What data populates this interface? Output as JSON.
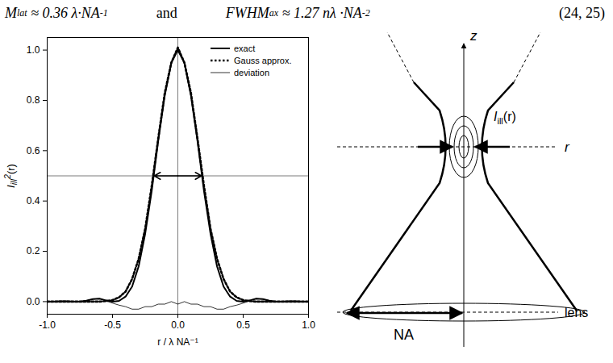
{
  "equation": {
    "parts": [
      {
        "segments": [
          {
            "text": "M"
          },
          {
            "text": "lat",
            "sub": true
          },
          {
            "text": " ≈ 0.36 λ·NA"
          },
          {
            "text": "-1",
            "sup": true
          }
        ]
      },
      {
        "segments": [
          {
            "text": "and",
            "plain": true
          }
        ]
      },
      {
        "segments": [
          {
            "text": "FWHM"
          },
          {
            "text": "ax",
            "sub": true
          },
          {
            "text": " ≈ 1.27 nλ ·NA"
          },
          {
            "text": "-2",
            "sup": true
          }
        ]
      }
    ],
    "number": "(24, 25)"
  },
  "chart_data": {
    "type": "line",
    "xlabel": "r / λ NA⁻¹",
    "ylabel": {
      "base": "I",
      "sub": "ill",
      "sup": "2",
      "suffix": "(r)"
    },
    "x": [
      -1.0,
      -0.95,
      -0.9,
      -0.85,
      -0.8,
      -0.75,
      -0.7,
      -0.65,
      -0.6,
      -0.55,
      -0.5,
      -0.45,
      -0.4,
      -0.35,
      -0.3,
      -0.25,
      -0.2,
      -0.15,
      -0.1,
      -0.05,
      0.0,
      0.05,
      0.1,
      0.15,
      0.2,
      0.25,
      0.3,
      0.35,
      0.4,
      0.45,
      0.5,
      0.55,
      0.6,
      0.65,
      0.7,
      0.75,
      0.8,
      0.85,
      0.9,
      0.95,
      1.0
    ],
    "series": [
      {
        "name": "exact",
        "color": "#000000",
        "line_style": "solid",
        "values": [
          0.0,
          0.0,
          0.001,
          0.001,
          0.0,
          0.0,
          0.004,
          0.01,
          0.012,
          0.005,
          0.0,
          0.003,
          0.02,
          0.06,
          0.14,
          0.27,
          0.44,
          0.64,
          0.82,
          0.95,
          1.0,
          0.95,
          0.82,
          0.64,
          0.44,
          0.27,
          0.14,
          0.06,
          0.02,
          0.003,
          0.0,
          0.005,
          0.012,
          0.01,
          0.004,
          0.0,
          0.0,
          0.001,
          0.001,
          0.0,
          0.0
        ]
      },
      {
        "name": "Gauss approx.",
        "color": "#000000",
        "line_style": "dotted",
        "values": [
          0,
          0,
          0,
          0,
          0,
          0,
          0,
          0,
          0.0,
          0.002,
          0.006,
          0.017,
          0.04,
          0.09,
          0.17,
          0.29,
          0.46,
          0.65,
          0.83,
          0.95,
          1.01,
          0.95,
          0.83,
          0.65,
          0.46,
          0.29,
          0.17,
          0.09,
          0.04,
          0.017,
          0.006,
          0.002,
          0.0,
          0,
          0,
          0,
          0,
          0,
          0,
          0,
          0
        ]
      },
      {
        "name": "deviation",
        "color": "#000000",
        "line_style": "solid",
        "values": [
          0,
          0,
          0.001,
          0.001,
          0,
          0,
          0.004,
          0.01,
          0.012,
          0.003,
          -0.006,
          -0.014,
          -0.02,
          -0.03,
          -0.03,
          -0.02,
          -0.02,
          -0.01,
          -0.01,
          0.0,
          -0.01,
          0.0,
          -0.01,
          -0.01,
          -0.02,
          -0.02,
          -0.03,
          -0.03,
          -0.02,
          -0.014,
          -0.006,
          0.003,
          0.012,
          0.01,
          0.004,
          0,
          0,
          0.001,
          0.001,
          0,
          0
        ]
      }
    ],
    "xlim": [
      -1.0,
      1.0
    ],
    "xticks": [
      {
        "value": -1.0,
        "label": "-1.0"
      },
      {
        "value": -0.5,
        "label": "-0.5"
      },
      {
        "value": 0,
        "label": "0.0"
      },
      {
        "value": 0.5,
        "label": "0.5"
      },
      {
        "value": 1.0,
        "label": "1.0"
      }
    ],
    "ylim": [
      -0.05,
      1.05
    ],
    "yticks": [
      {
        "value": 0,
        "label": "0.0"
      },
      {
        "value": 0.2,
        "label": "0.2"
      },
      {
        "value": 0.4,
        "label": "0.4"
      },
      {
        "value": 0.6,
        "label": "0.6"
      },
      {
        "value": 0.8,
        "label": "0.8"
      },
      {
        "value": 1.0,
        "label": "1.0"
      }
    ],
    "reference_lines": {
      "y": 0.5,
      "x": 0
    },
    "fwhm_arrow": {
      "y": 0.5,
      "x_from": -0.18,
      "x_to": 0.18
    },
    "legend": "top-right",
    "grid": false
  },
  "diagram": {
    "axis_z": "z",
    "axis_r": "r",
    "lens": "lens",
    "aperture": "NA",
    "focus_label": {
      "base": "I",
      "sub": "ill",
      "suffix": "(r)"
    }
  }
}
